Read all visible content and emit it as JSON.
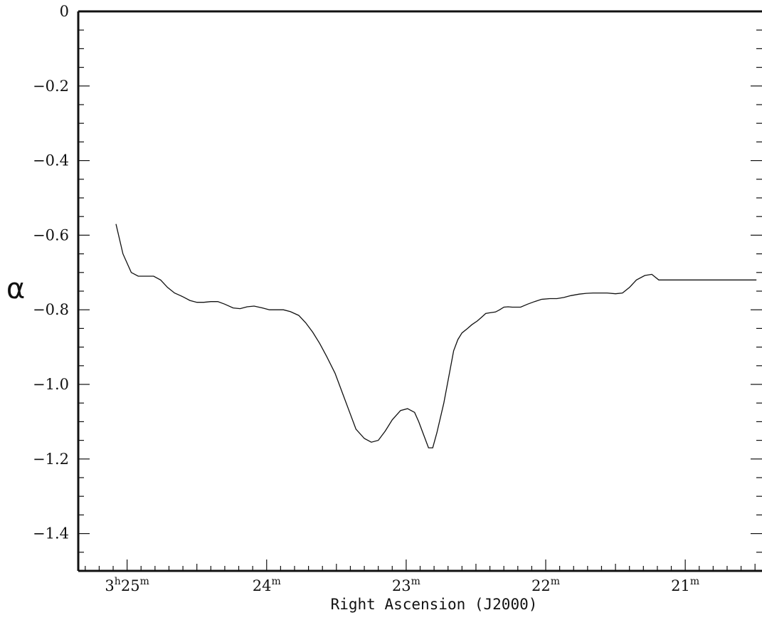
{
  "chart_data": {
    "type": "line",
    "title": "",
    "xlabel": "Right Ascension (J2000)",
    "ylabel": "α",
    "x_unit": "minutes of RA past 3h",
    "xlim": [
      25.35,
      20.45
    ],
    "ylim": [
      -1.5,
      0
    ],
    "x_reversed": true,
    "grid": false,
    "legend": "none",
    "line_color": "#111111",
    "x_ticks": [
      {
        "value": 25,
        "prefix": "3",
        "prefix_sup": "h",
        "main": "25",
        "sup": "m"
      },
      {
        "value": 24,
        "prefix": "",
        "prefix_sup": "",
        "main": "24",
        "sup": "m"
      },
      {
        "value": 23,
        "prefix": "",
        "prefix_sup": "",
        "main": "23",
        "sup": "m"
      },
      {
        "value": 22,
        "prefix": "",
        "prefix_sup": "",
        "main": "22",
        "sup": "m"
      },
      {
        "value": 21,
        "prefix": "",
        "prefix_sup": "",
        "main": "21",
        "sup": "m"
      }
    ],
    "y_ticks": [
      {
        "value": 0,
        "label": "0"
      },
      {
        "value": -0.2,
        "label": "−0.2"
      },
      {
        "value": -0.4,
        "label": "−0.4"
      },
      {
        "value": -0.6,
        "label": "−0.6"
      },
      {
        "value": -0.8,
        "label": "−0.8"
      },
      {
        "value": -1.0,
        "label": "−1.0"
      },
      {
        "value": -1.2,
        "label": "−1.2"
      },
      {
        "value": -1.4,
        "label": "−1.4"
      }
    ],
    "series": [
      {
        "x": [
          25.08,
          25.03,
          24.97,
          24.92,
          24.87,
          24.81,
          24.76,
          24.71,
          24.66,
          24.6,
          24.55,
          24.5,
          24.45,
          24.4,
          24.35,
          24.3,
          24.24,
          24.19,
          24.14,
          24.09,
          24.03,
          23.98,
          23.93,
          23.88,
          23.83,
          23.77,
          23.72,
          23.67,
          23.62,
          23.57,
          23.51,
          23.46,
          23.41,
          23.36,
          23.3,
          23.25,
          23.2,
          23.15,
          23.1,
          23.04,
          22.99,
          22.94,
          22.91,
          22.88,
          22.84,
          22.81,
          22.78,
          22.73,
          22.69,
          22.66,
          22.63,
          22.6,
          22.56,
          22.53,
          22.49,
          22.46,
          22.43,
          22.4,
          22.36,
          22.33,
          22.3,
          22.27,
          22.24,
          22.18,
          22.13,
          22.08,
          22.03,
          21.97,
          21.92,
          21.87,
          21.82,
          21.76,
          21.71,
          21.66,
          21.61,
          21.56,
          21.5,
          21.45,
          21.4,
          21.35,
          21.29,
          21.24,
          21.19,
          21.14,
          21.09,
          21.03,
          20.98,
          20.93,
          20.88,
          20.83,
          20.77,
          20.72,
          20.67,
          20.62,
          20.57,
          20.53,
          20.49
        ],
        "y": [
          -0.57,
          -0.65,
          -0.7,
          -0.71,
          -0.71,
          -0.71,
          -0.72,
          -0.74,
          -0.755,
          -0.765,
          -0.775,
          -0.78,
          -0.78,
          -0.778,
          -0.778,
          -0.785,
          -0.795,
          -0.797,
          -0.792,
          -0.79,
          -0.795,
          -0.8,
          -0.8,
          -0.8,
          -0.805,
          -0.815,
          -0.835,
          -0.86,
          -0.89,
          -0.925,
          -0.97,
          -1.02,
          -1.07,
          -1.12,
          -1.145,
          -1.155,
          -1.15,
          -1.125,
          -1.095,
          -1.07,
          -1.065,
          -1.075,
          -1.1,
          -1.13,
          -1.17,
          -1.17,
          -1.13,
          -1.05,
          -0.97,
          -0.91,
          -0.88,
          -0.862,
          -0.85,
          -0.84,
          -0.83,
          -0.82,
          -0.81,
          -0.808,
          -0.806,
          -0.8,
          -0.793,
          -0.792,
          -0.793,
          -0.793,
          -0.785,
          -0.778,
          -0.772,
          -0.77,
          -0.77,
          -0.767,
          -0.762,
          -0.758,
          -0.756,
          -0.755,
          -0.755,
          -0.755,
          -0.757,
          -0.755,
          -0.74,
          -0.72,
          -0.708,
          -0.705,
          -0.72,
          -0.72,
          -0.72,
          -0.72,
          -0.72,
          -0.72,
          -0.72,
          -0.72,
          -0.72,
          -0.72,
          -0.72,
          -0.72,
          -0.72,
          -0.72,
          -0.72
        ]
      }
    ]
  }
}
